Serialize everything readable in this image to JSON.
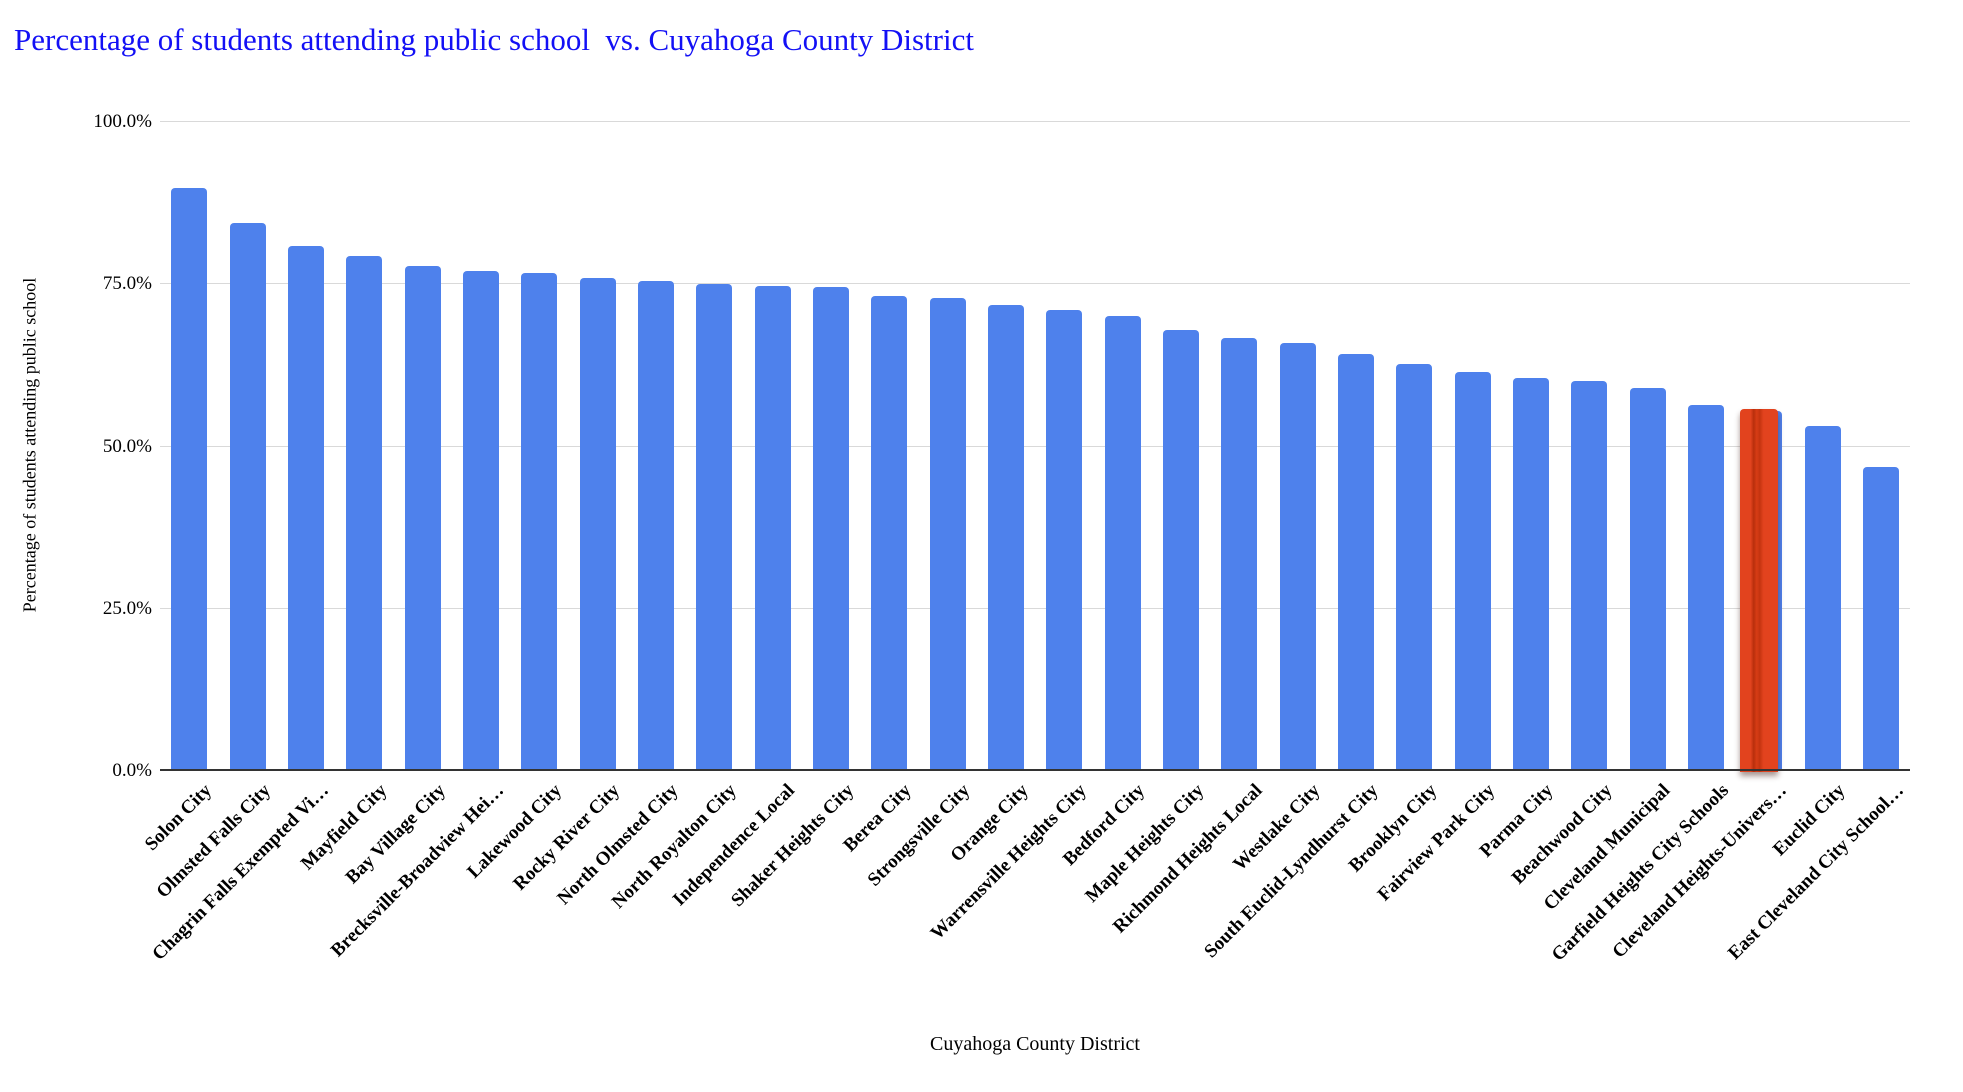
{
  "title": "Percentage of students attending public school  vs. Cuyahoga County District",
  "colors": {
    "bar": "#4e81ec",
    "highlight": "#e2431e",
    "highlight_dark_stripe": "#b92f0c",
    "title_text": "#1310f5",
    "gridline": "#d9d9d9",
    "axis_line": "#333333"
  },
  "chart_data": {
    "type": "bar",
    "title": "Percentage of students attending public school  vs. Cuyahoga County District",
    "xlabel": "Cuyahoga County District",
    "ylabel": "Percentage of students attending public school",
    "ylim": [
      0,
      100
    ],
    "grid": true,
    "legend_position": "none",
    "yticks": [
      {
        "value": 0,
        "label": "0.0%"
      },
      {
        "value": 25,
        "label": "25.0%"
      },
      {
        "value": 50,
        "label": "50.0%"
      },
      {
        "value": 75,
        "label": "75.0%"
      },
      {
        "value": 100,
        "label": "100.0%"
      }
    ],
    "categories": [
      "Solon City",
      "Olmsted Falls City",
      "Chagrin Falls Exempted Vi…",
      "Mayfield City",
      "Bay Village City",
      "Brecksville-Broadview Hei…",
      "Lakewood City",
      "Rocky River City",
      "North Olmsted City",
      "North Royalton City",
      "Independence Local",
      "Shaker Heights City",
      "Berea City",
      "Strongsville City",
      "Orange City",
      "Warrensville Heights City",
      "Bedford City",
      "Maple Heights City",
      "Richmond Heights Local",
      "Westlake City",
      "South Euclid-Lyndhurst City",
      "Brooklyn City",
      "Fairview Park City",
      "Parma City",
      "Beachwood City",
      "Cleveland Municipal",
      "Garfield Heights City Schools",
      "Cleveland Heights-Univers…",
      "Euclid City",
      "East Cleveland City School…"
    ],
    "values": [
      89.7,
      84.3,
      80.7,
      79.2,
      77.6,
      76.9,
      76.6,
      75.8,
      75.3,
      74.9,
      74.6,
      74.5,
      73.0,
      72.7,
      71.7,
      70.9,
      70.0,
      67.8,
      66.5,
      65.8,
      64.1,
      62.6,
      61.3,
      60.4,
      59.9,
      58.9,
      56.3,
      55.3,
      53.0,
      46.7
    ],
    "highlight_index": 27,
    "highlighted_category": "Cleveland Heights-Univers…"
  }
}
